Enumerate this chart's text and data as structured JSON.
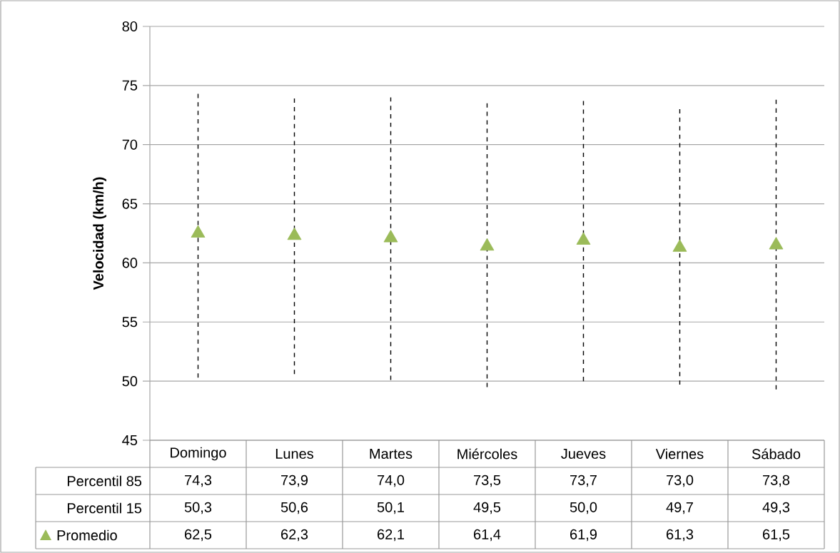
{
  "chart_data": {
    "type": "scatter",
    "ylabel": "Velocidad (km/h)",
    "categories": [
      "Domingo",
      "Lunes",
      "Martes",
      "Miércoles",
      "Jueves",
      "Viernes",
      "Sábado"
    ],
    "series": [
      {
        "name": "Promedio",
        "color": "#9bbb59",
        "marker": "triangle",
        "values": [
          62.5,
          62.3,
          62.1,
          61.4,
          61.9,
          61.3,
          61.5
        ],
        "value_labels": [
          "62,5",
          "62,3",
          "62,1",
          "61,4",
          "61,9",
          "61,3",
          "61,5"
        ],
        "errors": [
          [
            50.3,
            74.3
          ],
          [
            50.6,
            73.9
          ],
          [
            50.1,
            74.0
          ],
          [
            49.5,
            73.5
          ],
          [
            50.0,
            73.7
          ],
          [
            49.7,
            73.0
          ],
          [
            49.3,
            73.8
          ]
        ]
      }
    ],
    "annotations": [
      "Percentil 85",
      "Percentil 15",
      "74,3",
      "73,9",
      "74,0",
      "73,5",
      "73,7",
      "73,0",
      "73,8",
      "50,3",
      "50,6",
      "50,1",
      "49,5",
      "50,0",
      "49,7",
      "49,3"
    ],
    "line_style": "dashed",
    "ylim": [
      45,
      80
    ],
    "yticks": [
      45,
      50,
      55,
      60,
      65,
      70,
      75,
      80
    ],
    "grid": "y"
  }
}
